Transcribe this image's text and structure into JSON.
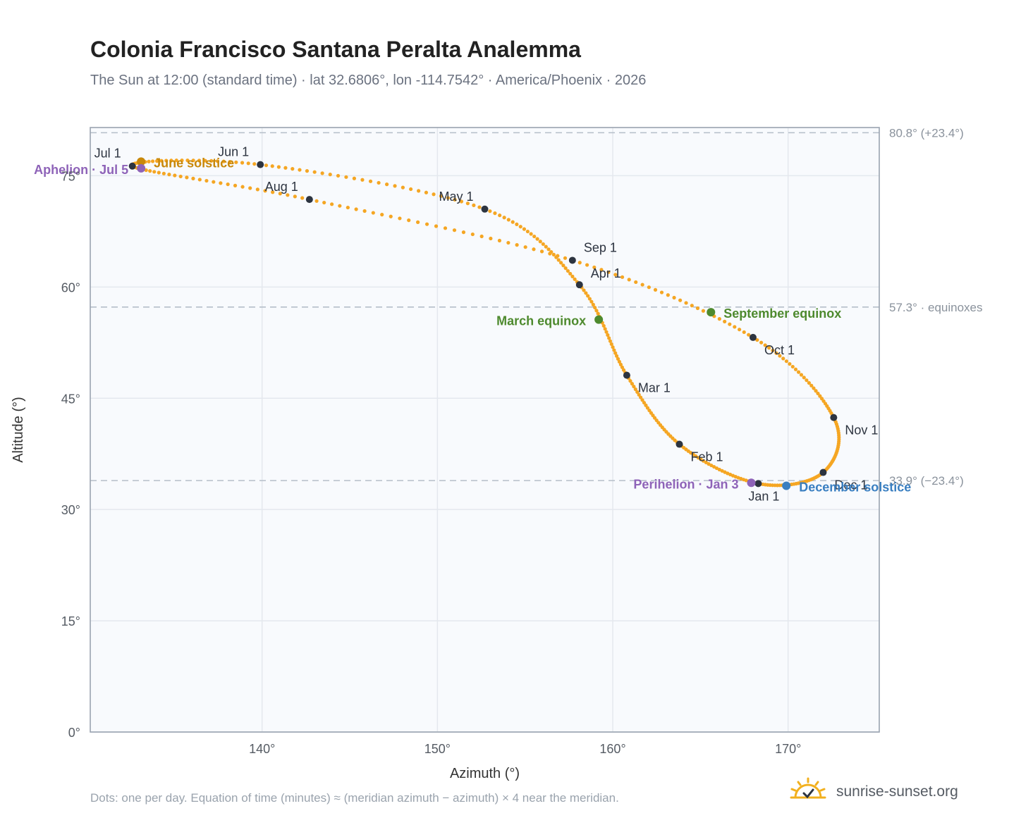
{
  "header": {
    "title": "Colonia Francisco Santana Peralta Analemma",
    "subtitle": "The Sun at 12:00 (standard time) · lat 32.6806°, lon -114.7542° · America/Phoenix · 2026"
  },
  "footer": {
    "note": "Dots: one per day. Equation of time (minutes) ≈ (meridian azimuth − azimuth) × 4 near the meridian.",
    "brand": "sunrise-sunset.org"
  },
  "colors": {
    "curve": "#f5a623",
    "month_marker": "#2d3440",
    "june_solstice": "#c8880a",
    "december_solstice": "#3a7fc1",
    "equinox": "#4e8a2e",
    "apsis": "#8e63b8",
    "plot_background": "#f8fafd",
    "grid": "#e4e8ee",
    "axis_frame": "#9aa3b0",
    "reference_line": "#b5bec9"
  },
  "chart_data": {
    "type": "scatter",
    "title": "Colonia Francisco Santana Peralta Analemma",
    "xlabel": "Azimuth (°)",
    "ylabel": "Altitude (°)",
    "xlim": [
      130.2,
      175.2
    ],
    "ylim": [
      0,
      81.5
    ],
    "xticks": [
      140,
      150,
      160,
      170
    ],
    "yticks": [
      0,
      15,
      30,
      45,
      60,
      75
    ],
    "xtick_labels": [
      "140°",
      "150°",
      "160°",
      "170°"
    ],
    "ytick_labels": [
      "0°",
      "15°",
      "30°",
      "45°",
      "60°",
      "75°"
    ],
    "grid": true,
    "series": [
      {
        "points_per_day": true,
        "month_markers": [
          {
            "label": "Jan 1",
            "azimuth": 168.3,
            "altitude": 33.5
          },
          {
            "label": "Feb 1",
            "azimuth": 163.8,
            "altitude": 38.8
          },
          {
            "label": "Mar 1",
            "azimuth": 160.8,
            "altitude": 48.1
          },
          {
            "label": "Apr 1",
            "azimuth": 158.1,
            "altitude": 60.3
          },
          {
            "label": "May 1",
            "azimuth": 152.7,
            "altitude": 70.5
          },
          {
            "label": "Jun 1",
            "azimuth": 139.9,
            "altitude": 76.5
          },
          {
            "label": "Jul 1",
            "azimuth": 132.6,
            "altitude": 76.3
          },
          {
            "label": "Aug 1",
            "azimuth": 142.7,
            "altitude": 71.8
          },
          {
            "label": "Sep 1",
            "azimuth": 157.7,
            "altitude": 63.6
          },
          {
            "label": "Oct 1",
            "azimuth": 168.0,
            "altitude": 53.2
          },
          {
            "label": "Nov 1",
            "azimuth": 172.6,
            "altitude": 42.4
          },
          {
            "label": "Dec 1",
            "azimuth": 172.0,
            "altitude": 35.0
          }
        ]
      }
    ],
    "events": [
      {
        "label": "June solstice",
        "azimuth": 133.1,
        "altitude": 76.9,
        "color_key": "june_solstice"
      },
      {
        "label": "Aphelion · Jul 5",
        "azimuth": 133.1,
        "altitude": 76.0,
        "color_key": "apsis"
      },
      {
        "label": "March equinox",
        "azimuth": 159.2,
        "altitude": 55.6,
        "color_key": "equinox"
      },
      {
        "label": "September equinox",
        "azimuth": 165.6,
        "altitude": 56.6,
        "color_key": "equinox"
      },
      {
        "label": "Perihelion · Jan 3",
        "azimuth": 167.9,
        "altitude": 33.6,
        "color_key": "apsis"
      },
      {
        "label": "December solstice",
        "azimuth": 169.9,
        "altitude": 33.2,
        "color_key": "december_solstice"
      }
    ],
    "reference_lines": [
      {
        "altitude": 80.8,
        "label": "80.8° (+23.4°)"
      },
      {
        "altitude": 57.3,
        "label": "57.3° · equinoxes"
      },
      {
        "altitude": 33.9,
        "label": "33.9° (−23.4°)"
      }
    ]
  }
}
